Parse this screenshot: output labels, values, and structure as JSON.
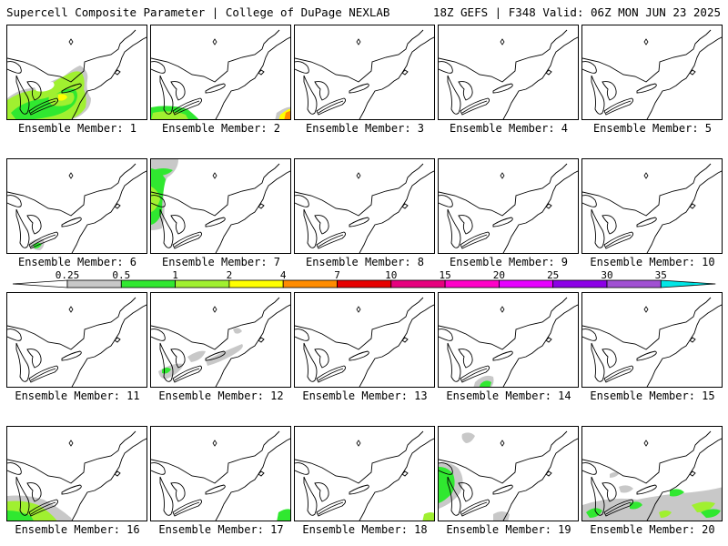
{
  "header": {
    "title": "Supercell Composite Parameter | College of DuPage NEXLAB",
    "run_info": "18Z GEFS | F348 Valid: 06Z MON JUN 23 2025"
  },
  "panels": [
    {
      "caption": "Ensemble Member: 1"
    },
    {
      "caption": "Ensemble Member: 2"
    },
    {
      "caption": "Ensemble Member: 3"
    },
    {
      "caption": "Ensemble Member: 4"
    },
    {
      "caption": "Ensemble Member: 5"
    },
    {
      "caption": "Ensemble Member: 6"
    },
    {
      "caption": "Ensemble Member: 7"
    },
    {
      "caption": "Ensemble Member: 8"
    },
    {
      "caption": "Ensemble Member: 9"
    },
    {
      "caption": "Ensemble Member: 10"
    },
    {
      "caption": "Ensemble Member: 11"
    },
    {
      "caption": "Ensemble Member: 12"
    },
    {
      "caption": "Ensemble Member: 13"
    },
    {
      "caption": "Ensemble Member: 14"
    },
    {
      "caption": "Ensemble Member: 15"
    },
    {
      "caption": "Ensemble Member: 16"
    },
    {
      "caption": "Ensemble Member: 17"
    },
    {
      "caption": "Ensemble Member: 18"
    },
    {
      "caption": "Ensemble Member: 19"
    },
    {
      "caption": "Ensemble Member: 20"
    }
  ],
  "color_scale": {
    "labels": [
      "0.25",
      "0.5",
      "1",
      "2",
      "4",
      "7",
      "10",
      "15",
      "20",
      "25",
      "30",
      "35"
    ],
    "colors": [
      "#c8c8c8",
      "#30e830",
      "#a0f030",
      "#ffff00",
      "#ff8c00",
      "#e60000",
      "#e6007e",
      "#ff00c8",
      "#e600ff",
      "#8c00e6",
      "#a050d2",
      "#00e6e6"
    ]
  }
}
